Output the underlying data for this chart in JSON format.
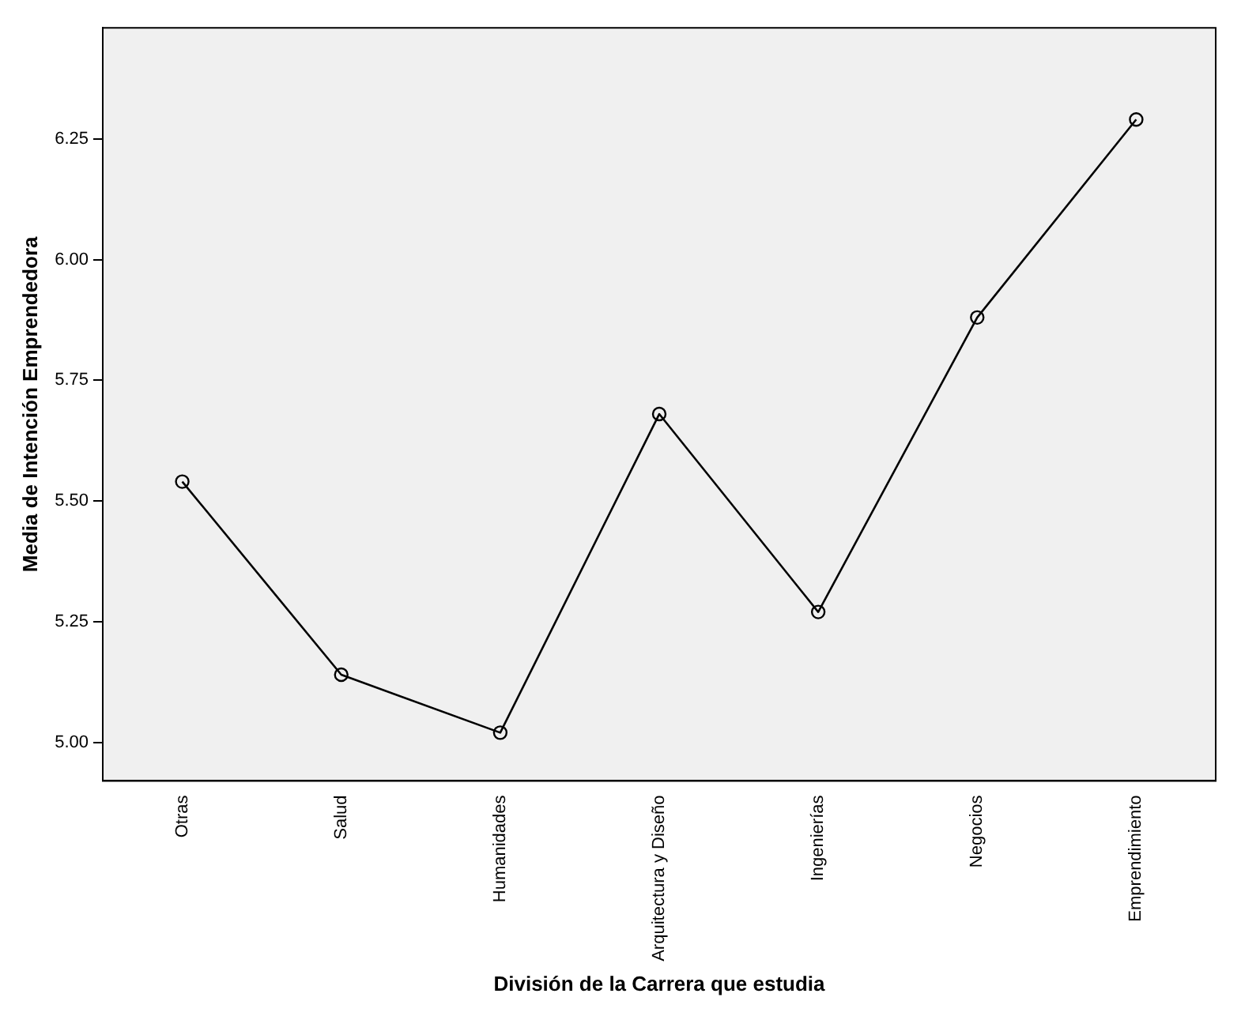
{
  "chart_data": {
    "type": "line",
    "xlabel": "División de la Carrera que estudia",
    "ylabel": "Media de Intención Emprendedora",
    "categories": [
      "Otras",
      "Salud",
      "Humanidades",
      "Arquitectura y Diseño",
      "Ingenierías",
      "Negocios",
      "Emprendimiento"
    ],
    "series": [
      {
        "color": "#000000",
        "values": [
          5.54,
          5.14,
          5.02,
          5.68,
          5.27,
          5.88,
          6.29
        ]
      }
    ],
    "ylim": [
      4.92,
      6.48
    ],
    "yticks": [
      {
        "value": 5,
        "label": "5.00"
      },
      {
        "value": 5.25,
        "label": "5.25"
      },
      {
        "value": 5.5,
        "label": "5.50"
      },
      {
        "value": 5.75,
        "label": "5.75"
      },
      {
        "value": 6,
        "label": "6.00"
      },
      {
        "value": 6.25,
        "label": "6.25"
      }
    ],
    "grid": false,
    "legend": false,
    "marker": "circle",
    "line_style": "solid"
  }
}
